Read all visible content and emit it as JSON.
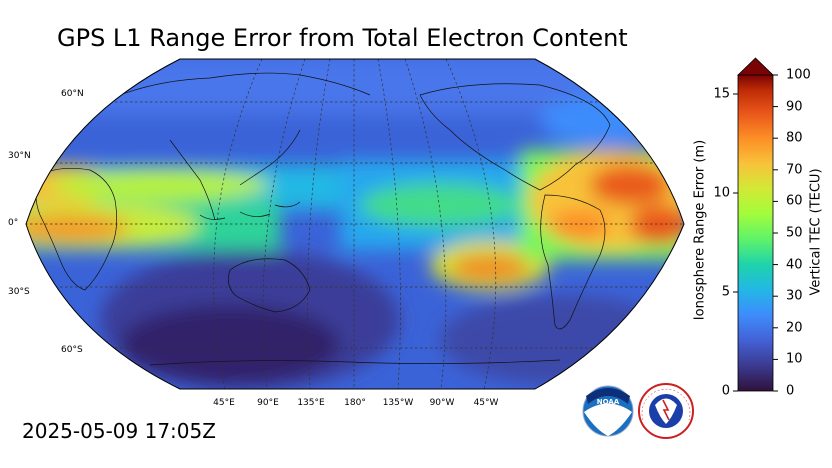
{
  "title": "GPS L1 Range Error from Total Electron Content",
  "timestamp": "2025-05-09 17:05Z",
  "map": {
    "lat_labels": [
      "60°N",
      "30°N",
      "0°",
      "30°S",
      "60°S"
    ],
    "lon_labels": [
      "45°E",
      "90°E",
      "135°E",
      "180°",
      "135°W",
      "90°W",
      "45°W"
    ]
  },
  "colorbar": {
    "left_title": "Ionosphere Range Error (m)",
    "right_title": "Vertical TEC (TECU)",
    "left_ticks": [
      "0",
      "5",
      "10",
      "15"
    ],
    "right_ticks": [
      "0",
      "10",
      "20",
      "30",
      "40",
      "50",
      "60",
      "70",
      "80",
      "90",
      "100"
    ],
    "colors": [
      "#30123b",
      "#3b3a8f",
      "#4361d6",
      "#3e8cfc",
      "#23b7e6",
      "#1ed3ab",
      "#5ef36a",
      "#a2fc3c",
      "#d2e935",
      "#f8c23a",
      "#fd8e26",
      "#e9561a",
      "#c02d06",
      "#7a0403"
    ]
  },
  "logos": {
    "noaa": "NOAA",
    "nws": "NATIONAL WEATHER SERVICE"
  }
}
